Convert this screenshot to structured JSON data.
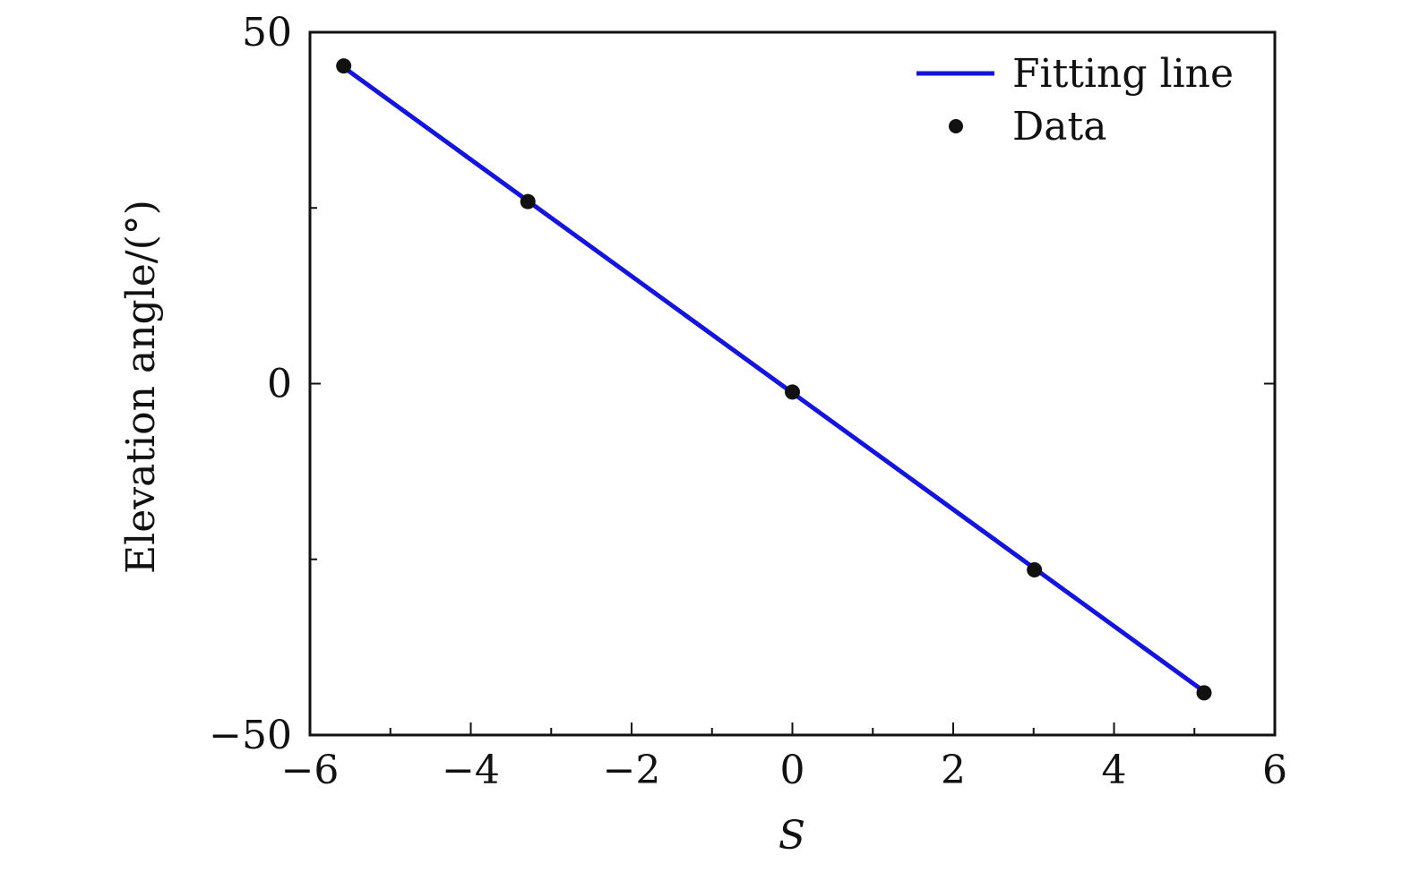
{
  "chart_data": {
    "type": "scatter",
    "xlabel": "S",
    "ylabel": "Elevation angle/(°)",
    "xlim": [
      -6,
      6
    ],
    "ylim": [
      -50,
      50
    ],
    "x_ticks": [
      -6,
      -4,
      -2,
      0,
      2,
      4,
      6
    ],
    "x_tick_labels": [
      "−6",
      "−4",
      "−2",
      "0",
      "2",
      "4",
      "6"
    ],
    "x_minor_ticks": [
      -5,
      -3,
      -1,
      1,
      3,
      5
    ],
    "y_ticks": [
      -50,
      0,
      50
    ],
    "y_tick_labels": [
      "−50",
      "0",
      "50"
    ],
    "y_minor_ticks": [
      -25,
      25
    ],
    "grid": false,
    "legend_position": "top-right",
    "series": [
      {
        "name": "Fitting line",
        "kind": "line",
        "color": "#1515d8",
        "x": [
          -5.58,
          5.12
        ],
        "y": [
          45.0,
          -43.8
        ]
      },
      {
        "name": "Data",
        "kind": "scatter",
        "color": "#111111",
        "x": [
          -5.58,
          -3.29,
          0.0,
          3.01,
          5.12
        ],
        "y": [
          45.2,
          25.9,
          -1.2,
          -26.5,
          -44.0
        ]
      }
    ]
  }
}
